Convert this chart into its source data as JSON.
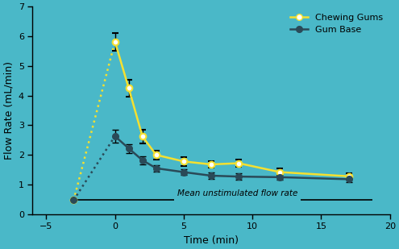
{
  "background_color": "#4ab8c8",
  "chewing_gum_x": [
    -3,
    0,
    1,
    2,
    3,
    5,
    7,
    9,
    12,
    17
  ],
  "chewing_gum_y": [
    0.48,
    5.82,
    4.25,
    2.62,
    2.0,
    1.78,
    1.68,
    1.72,
    1.42,
    1.28
  ],
  "chewing_gum_err": [
    0.05,
    0.3,
    0.28,
    0.22,
    0.15,
    0.15,
    0.12,
    0.13,
    0.12,
    0.11
  ],
  "gum_base_x": [
    -3,
    0,
    1,
    2,
    3,
    5,
    7,
    9,
    12,
    17
  ],
  "gum_base_y": [
    0.48,
    2.63,
    2.22,
    1.82,
    1.55,
    1.42,
    1.3,
    1.27,
    1.25,
    1.18
  ],
  "gum_base_err": [
    0.04,
    0.22,
    0.15,
    0.13,
    0.11,
    0.1,
    0.1,
    0.1,
    0.09,
    0.1
  ],
  "mean_unstim_y": 0.48,
  "mean_unstim_x1": -3,
  "mean_unstim_x2": 4.3,
  "mean_unstim_x3": 13.5,
  "mean_unstim_x4": 18.7,
  "mean_unstim_label": "Mean unstimulated flow rate",
  "chewing_gum_color": "#f5e030",
  "gum_base_color": "#2a4a58",
  "xlabel": "Time (min)",
  "ylabel": "Flow Rate (mL/min)",
  "xlim": [
    -6,
    20
  ],
  "ylim": [
    0,
    7
  ],
  "xticks": [
    -5,
    0,
    5,
    10,
    15,
    20
  ],
  "yticks": [
    0,
    1,
    2,
    3,
    4,
    5,
    6,
    7
  ],
  "legend_chewing": "Chewing Gums",
  "legend_gum_base": "Gum Base"
}
